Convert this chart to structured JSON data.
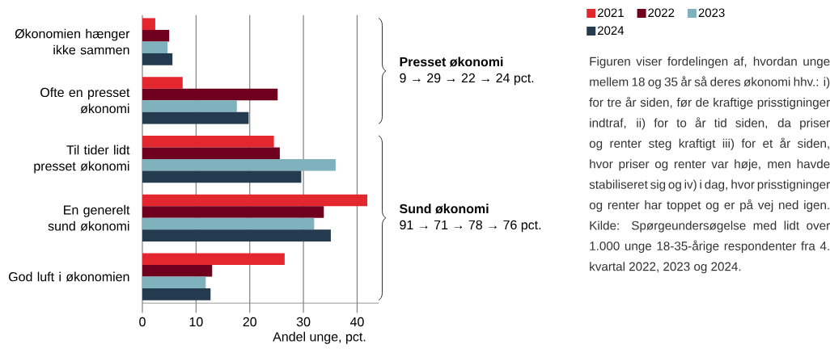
{
  "chart_data": {
    "type": "bar",
    "orientation": "horizontal",
    "categories": [
      "Økonomien hænger ikke sammen",
      "Ofte en presset økonomi",
      "Til tider lidt presset økonomi",
      "En generelt sund økonomi",
      "God luft i økonomien"
    ],
    "series": [
      {
        "name": "2021",
        "color": "#e4262f",
        "values": [
          2.4,
          7.5,
          24.5,
          41.9,
          26.5
        ]
      },
      {
        "name": "2022",
        "color": "#6f001e",
        "values": [
          5.0,
          25.2,
          25.6,
          33.8,
          13.0
        ]
      },
      {
        "name": "2023",
        "color": "#7fb2bd",
        "values": [
          4.7,
          17.6,
          36.0,
          32.0,
          11.8
        ]
      },
      {
        "name": "2024",
        "color": "#233a4f",
        "values": [
          5.6,
          19.8,
          29.6,
          35.1,
          12.7
        ]
      }
    ],
    "xlim": [
      0,
      44
    ],
    "xticks": [
      0,
      10,
      20,
      30,
      40
    ],
    "xlabel": "Andel unge, pct.",
    "grid": "x",
    "legend": "top right",
    "annotations": [
      "Presset økonomi",
      "9 → 29 → 22 → 24 pct.",
      "Sund økonomi",
      "91 → 71 → 78 → 76 pct.",
      "Figuren viser fordelingen af, hvordan unge mellem 18 og 35 år så deres økonomi hhv.: i) for tre år siden, før de kraftige prisstigninger indtraf, ii) for to år tid siden, da priser og renter steg kraftigt iii) for et år siden, hvor priser og renter var høje, men havde stabiliseret sig og iv) i dag, hvor prisstigninger og renter har toppet og er på vej ned igen. Kilde: Spørgeundersøgelse med lidt over 1.000 unge 18-35-årige respondenter fra 4. kvartal 2022, 2023 og 2024."
    ]
  }
}
